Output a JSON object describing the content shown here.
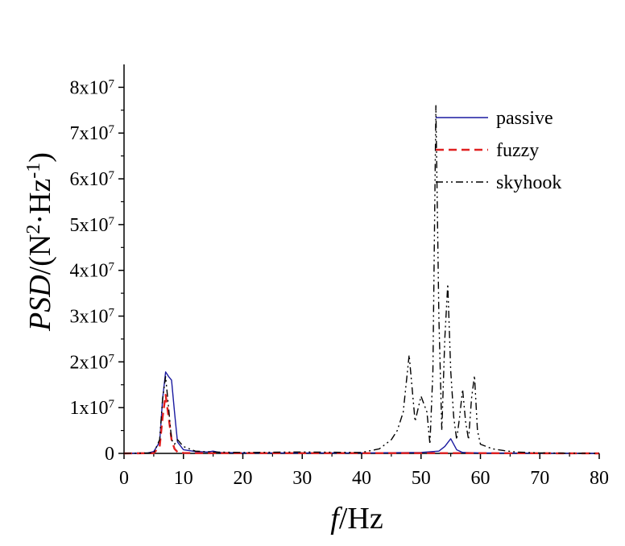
{
  "chart_data": {
    "type": "line",
    "xlabel": {
      "italic": "f",
      "rest": "/Hz"
    },
    "ylabel": {
      "italic": "PSD",
      "rest": "/(N",
      "sup1": "2",
      "mid": "·Hz",
      "sup2": "-1",
      "end": ")"
    },
    "xlim": [
      0,
      80
    ],
    "ylim": [
      0,
      85000000
    ],
    "x_ticks": [
      "0",
      "10",
      "20",
      "30",
      "40",
      "50",
      "60",
      "70",
      "80"
    ],
    "x_tick_values": [
      0,
      10,
      20,
      30,
      40,
      50,
      60,
      70,
      80
    ],
    "y_ticks": [
      {
        "value": 0,
        "base": "0",
        "exp": ""
      },
      {
        "value": 10000000,
        "base": "1x10",
        "exp": "7"
      },
      {
        "value": 20000000,
        "base": "2x10",
        "exp": "7"
      },
      {
        "value": 30000000,
        "base": "3x10",
        "exp": "7"
      },
      {
        "value": 40000000,
        "base": "4x10",
        "exp": "7"
      },
      {
        "value": 50000000,
        "base": "5x10",
        "exp": "7"
      },
      {
        "value": 60000000,
        "base": "6x10",
        "exp": "7"
      },
      {
        "value": 70000000,
        "base": "7x10",
        "exp": "7"
      },
      {
        "value": 80000000,
        "base": "8x10",
        "exp": "7"
      }
    ],
    "legend_position": "top-right",
    "series": [
      {
        "name": "passive",
        "color": "#1a1aa0",
        "dash": "solid",
        "x": [
          0,
          4,
          5,
          6,
          6.5,
          7,
          7.5,
          8,
          8.5,
          9,
          10,
          12,
          14,
          15,
          16,
          20,
          30,
          40,
          50,
          53,
          54,
          55,
          56,
          57,
          60,
          70,
          80
        ],
        "y": [
          0,
          100000,
          400000,
          2500000,
          12000000,
          17800000,
          16800000,
          16000000,
          9000000,
          2500000,
          800000,
          400000,
          300000,
          500000,
          200000,
          100000,
          100000,
          100000,
          200000,
          500000,
          1500000,
          3200000,
          800000,
          200000,
          100000,
          50000,
          0
        ]
      },
      {
        "name": "fuzzy",
        "color": "#e02020",
        "dash": "10,6",
        "x": [
          0,
          5,
          6,
          6.5,
          7,
          7.5,
          8,
          8.5,
          9,
          10,
          12,
          20,
          40,
          60,
          80
        ],
        "y": [
          0,
          50000,
          1500000,
          8000000,
          12800000,
          8000000,
          3000000,
          1000000,
          300000,
          100000,
          50000,
          50000,
          50000,
          50000,
          0
        ]
      },
      {
        "name": "skyhook",
        "color": "#000000",
        "dash": "9,4,2,4,2,4",
        "x": [
          0,
          5,
          6,
          6.5,
          7,
          7.5,
          8,
          8.5,
          9,
          10,
          12,
          15,
          20,
          30,
          40,
          43,
          45,
          46,
          47,
          48,
          49,
          50,
          51,
          51.5,
          52,
          52.5,
          53,
          53.5,
          54,
          54.5,
          55,
          55.5,
          56,
          56.5,
          57,
          57.5,
          58,
          58.5,
          59,
          59.5,
          60,
          61,
          62,
          64,
          66,
          70,
          80
        ],
        "y": [
          0,
          100000,
          3000000,
          12000000,
          16800000,
          10000000,
          3000000,
          2000000,
          3000000,
          1500000,
          500000,
          300000,
          200000,
          300000,
          200000,
          1000000,
          3000000,
          5000000,
          9000000,
          21500000,
          7000000,
          12500000,
          9000000,
          2000000,
          18000000,
          76000000,
          30000000,
          5000000,
          25000000,
          37000000,
          18000000,
          8000000,
          3000000,
          8000000,
          14000000,
          7000000,
          3000000,
          12000000,
          17000000,
          5000000,
          2000000,
          1500000,
          1000000,
          600000,
          300000,
          100000,
          0
        ]
      }
    ]
  }
}
